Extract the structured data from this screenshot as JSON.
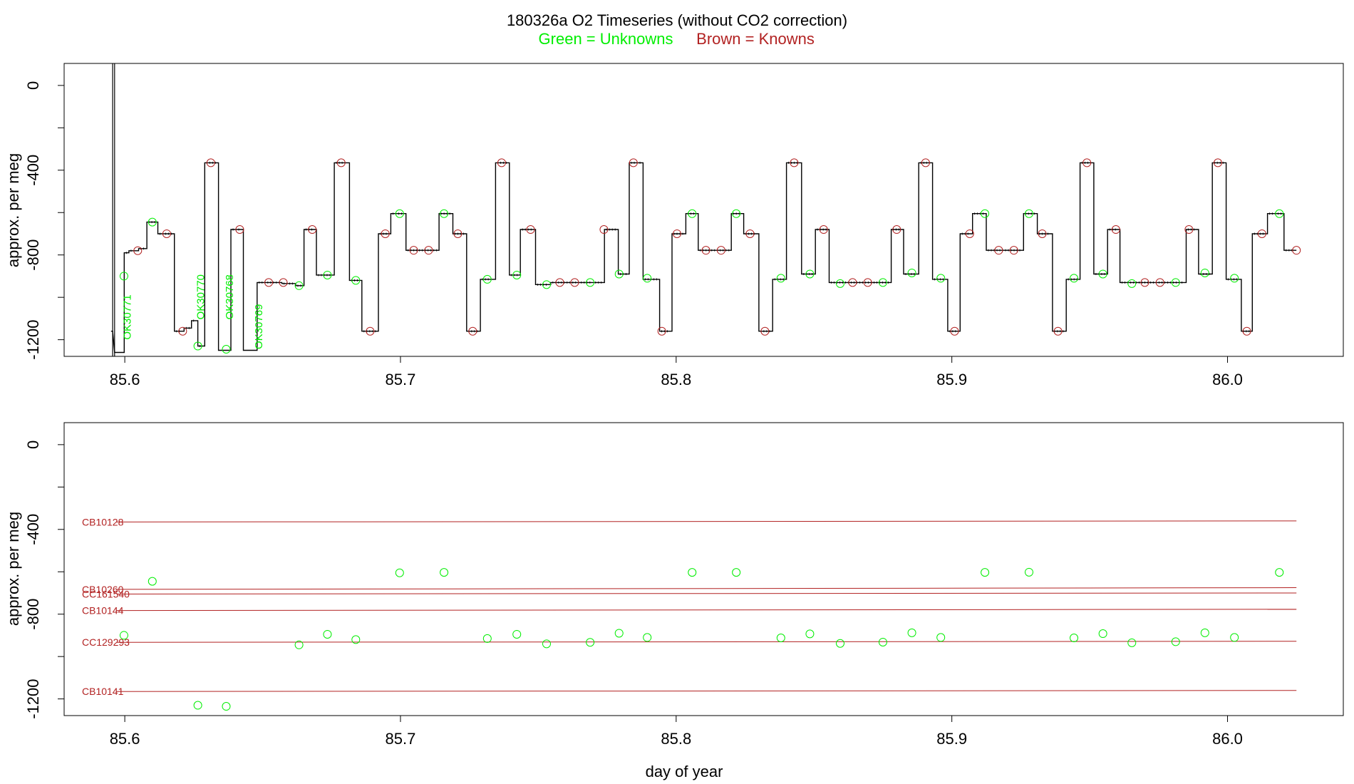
{
  "header": {
    "title": "180326a   O2 Timeseries (without CO2 correction)",
    "legend_green": "Green = Unknowns",
    "legend_brown": "Brown = Knowns"
  },
  "colors": {
    "unknown": "#00ee00",
    "known": "#b22222",
    "trace": "#000000"
  },
  "chart_data": [
    {
      "type": "line",
      "title": "180326a   O2 Timeseries (without CO2 correction)",
      "ylabel": "approx. per meg",
      "xlabel": "",
      "xlim": [
        85.578,
        86.042
      ],
      "ylim": [
        -1245,
        50
      ],
      "x_ticks": [
        "85.6",
        "85.7",
        "85.8",
        "85.9",
        "86.0"
      ],
      "y_ticks": [
        "0",
        "-400",
        "-800",
        "-1200"
      ],
      "legend": [
        "Green = Unknowns",
        "Brown = Knowns"
      ],
      "series": [
        {
          "trace_levels": [
            [
              85.595,
              85.5956,
              -1160
            ],
            [
              85.5963,
              85.5998,
              -1260
            ],
            [
              85.5998,
              85.6015,
              -790
            ],
            [
              85.6015,
              85.605,
              -780
            ],
            [
              85.605,
              85.608,
              -770
            ],
            [
              85.608,
              85.612,
              -645
            ],
            [
              85.612,
              85.618,
              -700
            ],
            [
              85.618,
              85.6215,
              -1160
            ],
            [
              85.6215,
              85.6242,
              -1145
            ],
            [
              85.6242,
              85.6265,
              -1110
            ],
            [
              85.6265,
              85.629,
              -1230
            ],
            [
              85.629,
              85.634,
              -365
            ],
            [
              85.634,
              85.637,
              -1250
            ],
            [
              85.637,
              85.6385,
              -1250
            ],
            [
              85.6385,
              85.643,
              -680
            ],
            [
              85.643,
              85.648,
              -1250
            ],
            [
              85.648,
              85.657,
              -930
            ],
            [
              85.657,
              85.662,
              -935
            ],
            [
              85.662,
              85.665,
              -945
            ],
            [
              85.665,
              85.6695,
              -680
            ],
            [
              85.6695,
              85.676,
              -895
            ],
            [
              85.676,
              85.6815,
              -365
            ],
            [
              85.6815,
              85.686,
              -920
            ],
            [
              85.686,
              85.692,
              -1160
            ],
            [
              85.692,
              85.6965,
              -700
            ],
            [
              85.6965,
              85.702,
              -605
            ],
            [
              85.702,
              85.714,
              -778
            ],
            [
              85.714,
              85.719,
              -605
            ],
            [
              85.719,
              85.724,
              -700
            ],
            [
              85.724,
              85.729,
              -1160
            ],
            [
              85.729,
              85.7345,
              -915
            ],
            [
              85.7345,
              85.7395,
              -365
            ],
            [
              85.7395,
              85.7435,
              -895
            ],
            [
              85.7435,
              85.749,
              -680
            ],
            [
              85.749,
              85.7545,
              -940
            ],
            [
              85.7545,
              85.77,
              -930
            ],
            [
              85.77,
              85.774,
              -930
            ],
            [
              85.774,
              85.779,
              -680
            ],
            [
              85.779,
              85.783,
              -890
            ],
            [
              85.783,
              85.788,
              -365
            ],
            [
              85.788,
              85.794,
              -915
            ],
            [
              85.794,
              85.7985,
              -1160
            ],
            [
              85.7985,
              85.8035,
              -700
            ],
            [
              85.8035,
              85.808,
              -605
            ],
            [
              85.808,
              85.82,
              -778
            ],
            [
              85.82,
              85.8245,
              -605
            ],
            [
              85.8245,
              85.83,
              -700
            ],
            [
              85.83,
              85.835,
              -1160
            ],
            [
              85.835,
              85.84,
              -915
            ],
            [
              85.84,
              85.8455,
              -365
            ],
            [
              85.8455,
              85.8505,
              -890
            ],
            [
              85.8505,
              85.8555,
              -680
            ],
            [
              85.8555,
              85.878,
              -930
            ],
            [
              85.878,
              85.8825,
              -680
            ],
            [
              85.8825,
              85.888,
              -890
            ],
            [
              85.888,
              85.893,
              -365
            ],
            [
              85.893,
              85.8985,
              -915
            ],
            [
              85.8985,
              85.903,
              -1160
            ],
            [
              85.903,
              85.9075,
              -700
            ],
            [
              85.9075,
              85.9125,
              -605
            ],
            [
              85.9125,
              85.926,
              -778
            ],
            [
              85.926,
              85.931,
              -605
            ],
            [
              85.931,
              85.9365,
              -700
            ],
            [
              85.9365,
              85.9415,
              -1160
            ],
            [
              85.9415,
              85.9465,
              -915
            ],
            [
              85.9465,
              85.9515,
              -365
            ],
            [
              85.9515,
              85.9565,
              -890
            ],
            [
              85.9565,
              85.961,
              -680
            ],
            [
              85.961,
              85.985,
              -930
            ],
            [
              85.985,
              85.9895,
              -680
            ],
            [
              85.9895,
              85.9945,
              -890
            ],
            [
              85.9945,
              85.9995,
              -365
            ],
            [
              85.9995,
              86.005,
              -915
            ],
            [
              86.005,
              86.009,
              -1160
            ],
            [
              86.009,
              86.0145,
              -700
            ],
            [
              86.0145,
              86.0205,
              -605
            ],
            [
              86.0205,
              86.025,
              -778
            ]
          ],
          "spike": {
            "x": [
              85.5956,
              85.5963
            ],
            "ymin": -1260,
            "ymax": 60
          }
        },
        {
          "name": "Green = Unknowns",
          "points": [
            [
              85.5997,
              -900
            ],
            [
              85.61,
              -645
            ],
            [
              85.6265,
              -1230
            ],
            [
              85.6368,
              -1245
            ],
            [
              85.6632,
              -945
            ],
            [
              85.6735,
              -895
            ],
            [
              85.6838,
              -920
            ],
            [
              85.6997,
              -605
            ],
            [
              85.7158,
              -605
            ],
            [
              85.7315,
              -915
            ],
            [
              85.7422,
              -895
            ],
            [
              85.753,
              -940
            ],
            [
              85.7688,
              -930
            ],
            [
              85.7793,
              -890
            ],
            [
              85.7895,
              -910
            ],
            [
              85.8058,
              -605
            ],
            [
              85.8218,
              -605
            ],
            [
              85.838,
              -910
            ],
            [
              85.8485,
              -890
            ],
            [
              85.8595,
              -935
            ],
            [
              85.875,
              -930
            ],
            [
              85.8855,
              -885
            ],
            [
              85.896,
              -910
            ],
            [
              85.912,
              -605
            ],
            [
              85.928,
              -605
            ],
            [
              85.9443,
              -910
            ],
            [
              85.9548,
              -890
            ],
            [
              85.9653,
              -935
            ],
            [
              85.9812,
              -930
            ],
            [
              85.9918,
              -885
            ],
            [
              86.0025,
              -910
            ],
            [
              86.0188,
              -605
            ]
          ],
          "labels": [
            {
              "text": "OK30771",
              "x": 85.6003,
              "y": -1200
            },
            {
              "text": "OK30770",
              "x": 85.627,
              "y": -1105
            },
            {
              "text": "OK30768",
              "x": 85.6375,
              "y": -1105
            },
            {
              "text": "OK30769",
              "x": 85.648,
              "y": -1245
            }
          ]
        },
        {
          "name": "Brown = Knowns",
          "points": [
            [
              85.6047,
              -780
            ],
            [
              85.6152,
              -700
            ],
            [
              85.621,
              -1160
            ],
            [
              85.6312,
              -365
            ],
            [
              85.6417,
              -680
            ],
            [
              85.6522,
              -930
            ],
            [
              85.6575,
              -930
            ],
            [
              85.668,
              -680
            ],
            [
              85.6785,
              -365
            ],
            [
              85.689,
              -1160
            ],
            [
              85.6945,
              -700
            ],
            [
              85.7048,
              -778
            ],
            [
              85.7102,
              -778
            ],
            [
              85.7208,
              -700
            ],
            [
              85.7262,
              -1160
            ],
            [
              85.7367,
              -365
            ],
            [
              85.7472,
              -680
            ],
            [
              85.7578,
              -930
            ],
            [
              85.7632,
              -930
            ],
            [
              85.7738,
              -680
            ],
            [
              85.7845,
              -365
            ],
            [
              85.7948,
              -1160
            ],
            [
              85.8003,
              -700
            ],
            [
              85.8108,
              -778
            ],
            [
              85.8163,
              -778
            ],
            [
              85.8268,
              -700
            ],
            [
              85.8322,
              -1160
            ],
            [
              85.8428,
              -365
            ],
            [
              85.8535,
              -680
            ],
            [
              85.864,
              -930
            ],
            [
              85.8695,
              -930
            ],
            [
              85.88,
              -680
            ],
            [
              85.8905,
              -365
            ],
            [
              85.901,
              -1160
            ],
            [
              85.9065,
              -700
            ],
            [
              85.917,
              -778
            ],
            [
              85.9225,
              -778
            ],
            [
              85.9328,
              -700
            ],
            [
              85.9385,
              -1160
            ],
            [
              85.949,
              -365
            ],
            [
              85.9595,
              -680
            ],
            [
              85.97,
              -930
            ],
            [
              85.9755,
              -930
            ],
            [
              85.986,
              -680
            ],
            [
              85.9965,
              -365
            ],
            [
              86.007,
              -1160
            ],
            [
              86.0125,
              -700
            ],
            [
              86.025,
              -778
            ]
          ]
        }
      ]
    },
    {
      "type": "scatter",
      "title": "",
      "ylabel": "approx. per meg",
      "xlabel": "day of year",
      "xlim": [
        85.578,
        86.042
      ],
      "ylim": [
        -1245,
        50
      ],
      "x_ticks": [
        "85.6",
        "85.7",
        "85.8",
        "85.9",
        "86.0"
      ],
      "y_ticks": [
        "0",
        "-400",
        "-800",
        "-1200"
      ],
      "series": [
        {
          "name": "Green = Unknowns",
          "points": [
            [
              85.5997,
              -900
            ],
            [
              85.61,
              -645
            ],
            [
              85.6265,
              -1230
            ],
            [
              85.6368,
              -1235
            ],
            [
              85.6632,
              -945
            ],
            [
              85.6735,
              -895
            ],
            [
              85.6838,
              -920
            ],
            [
              85.6997,
              -605
            ],
            [
              85.7158,
              -603
            ],
            [
              85.7315,
              -915
            ],
            [
              85.7422,
              -895
            ],
            [
              85.753,
              -940
            ],
            [
              85.7688,
              -933
            ],
            [
              85.7793,
              -890
            ],
            [
              85.7895,
              -910
            ],
            [
              85.8058,
              -603
            ],
            [
              85.8218,
              -603
            ],
            [
              85.838,
              -912
            ],
            [
              85.8485,
              -893
            ],
            [
              85.8595,
              -938
            ],
            [
              85.875,
              -932
            ],
            [
              85.8855,
              -888
            ],
            [
              85.896,
              -910
            ],
            [
              85.912,
              -603
            ],
            [
              85.928,
              -602
            ],
            [
              85.9443,
              -912
            ],
            [
              85.9548,
              -892
            ],
            [
              85.9653,
              -935
            ],
            [
              85.9812,
              -930
            ],
            [
              85.9918,
              -888
            ],
            [
              86.0025,
              -910
            ],
            [
              86.0188,
              -603
            ]
          ]
        },
        {
          "name": "Brown = Knowns",
          "lines": [
            {
              "label": "CB10128",
              "y0": -365,
              "y1": -360
            },
            {
              "label": "CB10260",
              "y0": -683,
              "y1": -675
            },
            {
              "label": "CC161540",
              "y0": -705,
              "y1": -700
            },
            {
              "label": "CB10144",
              "y0": -783,
              "y1": -777
            },
            {
              "label": "CC129293",
              "y0": -933,
              "y1": -928
            },
            {
              "label": "CB10141",
              "y0": -1165,
              "y1": -1160
            }
          ],
          "x_range": [
            85.597,
            86.025
          ]
        }
      ]
    }
  ]
}
